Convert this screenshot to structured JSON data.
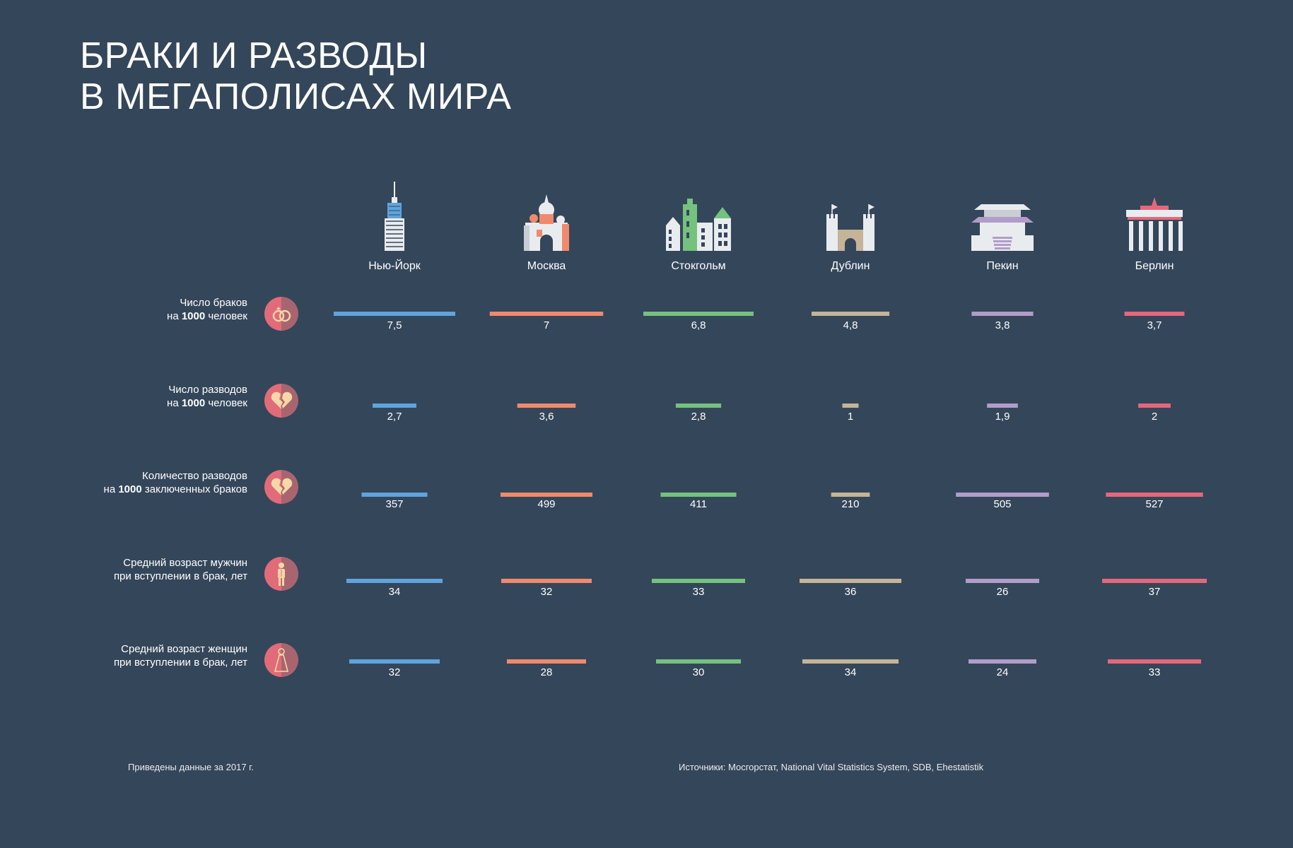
{
  "title": {
    "line1": "БРАКИ И РАЗВОДЫ",
    "line2": "В МЕГАПОЛИСАХ МИРА"
  },
  "chart_data": {
    "type": "bar",
    "categories": [
      "Нью-Йорк",
      "Москва",
      "Стокгольм",
      "Дублин",
      "Пекин",
      "Берлин"
    ],
    "colors": [
      "#5fa4dc",
      "#ef8a6c",
      "#75c27f",
      "#c5b497",
      "#b29cc9",
      "#e4677c"
    ],
    "icons": [
      "skyscraper-icon",
      "cathedral-icon",
      "gabled-houses-icon",
      "castle-icon",
      "pagoda-icon",
      "brandenburg-gate-icon"
    ],
    "series": [
      {
        "name_line1": "Число браков",
        "name_line2_prefix": "на ",
        "name_line2_bold": "1000",
        "name_line2_suffix": " человек",
        "icon": "rings-icon",
        "values": [
          7.5,
          7,
          6.8,
          4.8,
          3.8,
          3.7
        ],
        "labels": [
          "7,5",
          "7",
          "6,8",
          "4,8",
          "3,8",
          "3,7"
        ],
        "xlim": [
          0,
          7.5
        ]
      },
      {
        "name_line1": "Число разводов",
        "name_line2_prefix": "на ",
        "name_line2_bold": "1000",
        "name_line2_suffix": " человек",
        "icon": "broken-heart-icon",
        "values": [
          2.7,
          3.6,
          2.8,
          1,
          1.9,
          2
        ],
        "labels": [
          "2,7",
          "3,6",
          "2,8",
          "1",
          "1,9",
          "2"
        ],
        "xlim": [
          0,
          7.5
        ]
      },
      {
        "name_line1": "Количество разводов",
        "name_line2_prefix": "на ",
        "name_line2_bold": "1000",
        "name_line2_suffix": " заключенных браков",
        "icon": "broken-heart-icon",
        "values": [
          357,
          499,
          411,
          210,
          505,
          527
        ],
        "labels": [
          "357",
          "499",
          "411",
          "210",
          "505",
          "527"
        ],
        "xlim": [
          0,
          660
        ]
      },
      {
        "name_line1": "Средний возраст мужчин",
        "name_line2_prefix": "",
        "name_line2_bold": "",
        "name_line2_suffix": "при вступлении в брак, лет",
        "icon": "groom-icon",
        "values": [
          34,
          32,
          33,
          36,
          26,
          37
        ],
        "labels": [
          "34",
          "32",
          "33",
          "36",
          "26",
          "37"
        ],
        "xlim": [
          0,
          43
        ]
      },
      {
        "name_line1": "Средний возраст женщин",
        "name_line2_prefix": "",
        "name_line2_bold": "",
        "name_line2_suffix": "при вступлении в брак, лет",
        "icon": "bride-icon",
        "values": [
          32,
          28,
          30,
          34,
          24,
          33
        ],
        "labels": [
          "32",
          "28",
          "30",
          "34",
          "24",
          "33"
        ],
        "xlim": [
          0,
          43
        ]
      }
    ]
  },
  "notes": {
    "year": "Приведены данные за 2017 г.",
    "sources": "Источники: Мосгорстат, National Vital Statistics System, SDB, Ehestatistik"
  }
}
